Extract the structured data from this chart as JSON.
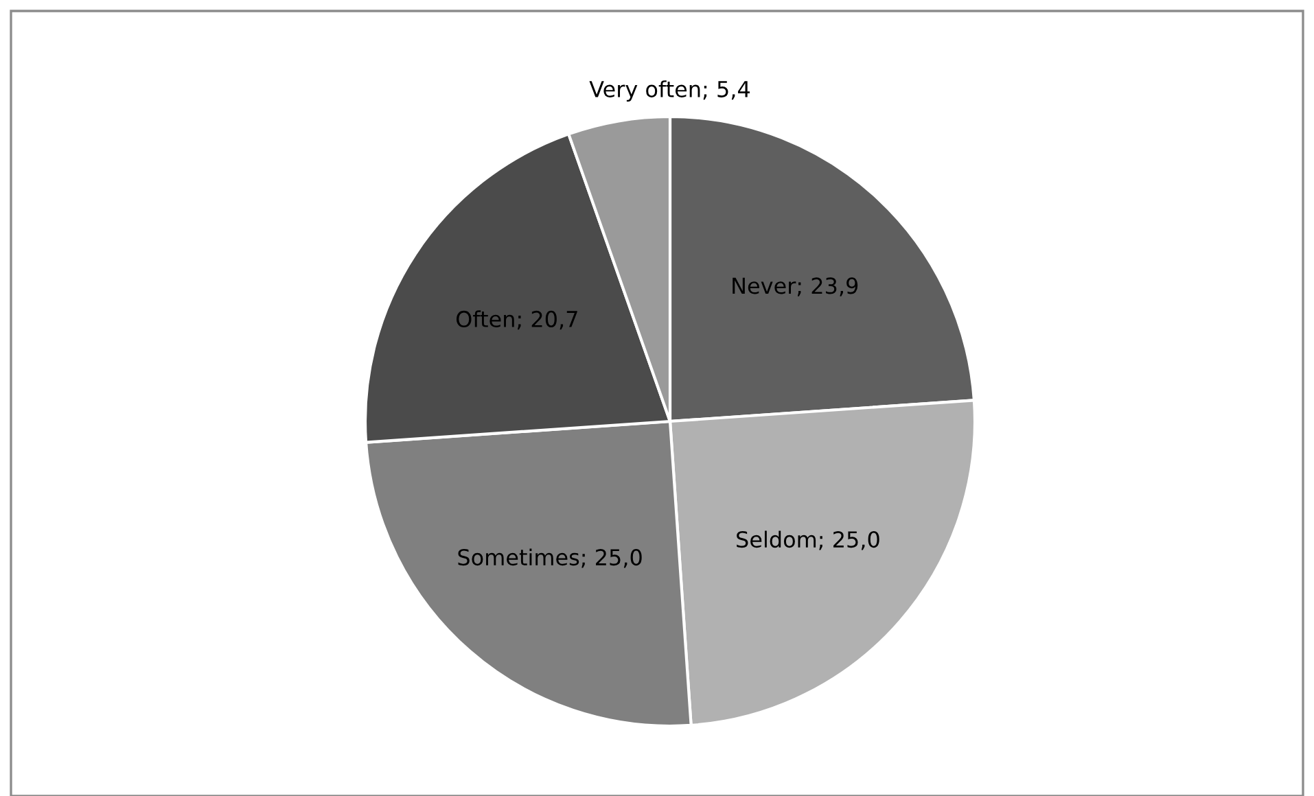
{
  "chart_data": {
    "type": "pie",
    "categories": [
      "Never",
      "Seldom",
      "Sometimes",
      "Often",
      "Very often"
    ],
    "values": [
      23.9,
      25.0,
      25.0,
      20.7,
      5.4
    ],
    "value_labels": [
      "23,9",
      "25,0",
      "25,0",
      "20,7",
      "5,4"
    ],
    "colors": [
      "#5f5f5f",
      "#b1b1b1",
      "#808080",
      "#4b4b4b",
      "#9a9a9a"
    ]
  }
}
